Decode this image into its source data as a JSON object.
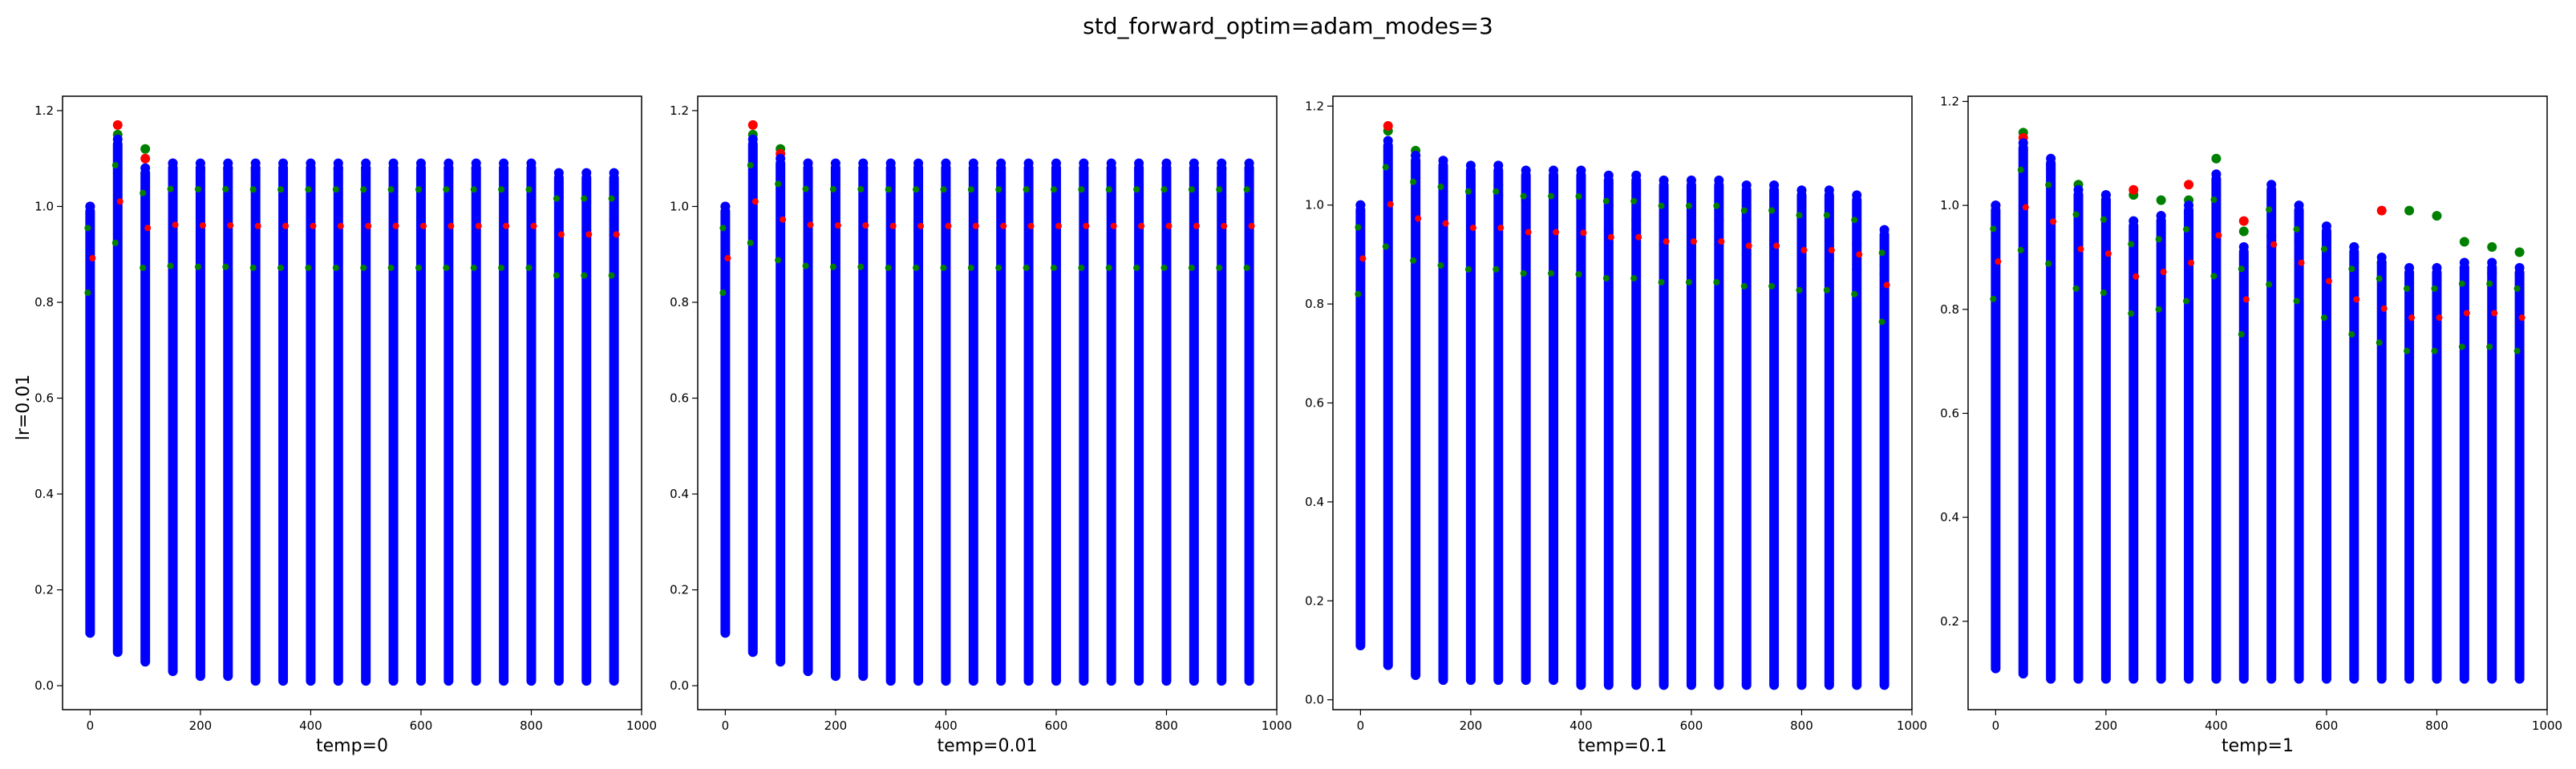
{
  "suptitle": "std_forward_optim=adam_modes=3",
  "row_label": "lr=0.01",
  "colors": {
    "red": "#ff0000",
    "green": "#008000",
    "blue": "#0000ff"
  },
  "chart_data": [
    {
      "type": "scatter",
      "xlabel": "temp=0",
      "ylabel": "lr=0.01",
      "xlim": [
        -50,
        1000
      ],
      "ylim": [
        -0.05,
        1.23
      ],
      "xticks": [
        "0",
        "200",
        "400",
        "600",
        "800",
        "1000"
      ],
      "yticks": [
        "0.0",
        "0.2",
        "0.4",
        "0.6",
        "0.8",
        "1.0",
        "1.2"
      ],
      "grid": false,
      "columns": [
        {
          "x": 0,
          "min": 0.1,
          "max": 1.0,
          "green_max": 1.0,
          "red_max": 1.0
        },
        {
          "x": 50,
          "min": 0.06,
          "max": 1.14,
          "green_max": 1.15,
          "red_max": 1.17
        },
        {
          "x": 100,
          "min": 0.04,
          "max": 1.08,
          "green_max": 1.12,
          "red_max": 1.1
        },
        {
          "x": 150,
          "min": 0.02,
          "max": 1.09,
          "green_max": 1.08,
          "red_max": 1.09
        },
        {
          "x": 200,
          "min": 0.01,
          "max": 1.09,
          "green_max": 1.08,
          "red_max": 1.08
        },
        {
          "x": 250,
          "min": 0.01,
          "max": 1.09,
          "green_max": 1.08,
          "red_max": 1.08
        },
        {
          "x": 300,
          "min": 0.0,
          "max": 1.09,
          "green_max": 1.08,
          "red_max": 1.08
        },
        {
          "x": 350,
          "min": 0.0,
          "max": 1.09,
          "green_max": 1.08,
          "red_max": 1.08
        },
        {
          "x": 400,
          "min": 0.0,
          "max": 1.09,
          "green_max": 1.08,
          "red_max": 1.08
        },
        {
          "x": 450,
          "min": 0.0,
          "max": 1.09,
          "green_max": 1.08,
          "red_max": 1.08
        },
        {
          "x": 500,
          "min": 0.0,
          "max": 1.09,
          "green_max": 1.08,
          "red_max": 1.08
        },
        {
          "x": 550,
          "min": 0.0,
          "max": 1.09,
          "green_max": 1.08,
          "red_max": 1.08
        },
        {
          "x": 600,
          "min": 0.0,
          "max": 1.09,
          "green_max": 1.08,
          "red_max": 1.08
        },
        {
          "x": 650,
          "min": 0.0,
          "max": 1.09,
          "green_max": 1.08,
          "red_max": 1.08
        },
        {
          "x": 700,
          "min": 0.0,
          "max": 1.09,
          "green_max": 1.08,
          "red_max": 1.08
        },
        {
          "x": 750,
          "min": 0.0,
          "max": 1.09,
          "green_max": 1.08,
          "red_max": 1.08
        },
        {
          "x": 800,
          "min": 0.0,
          "max": 1.09,
          "green_max": 1.08,
          "red_max": 1.0
        },
        {
          "x": 850,
          "min": 0.0,
          "max": 1.07,
          "green_max": 1.02,
          "red_max": 1.03
        },
        {
          "x": 900,
          "min": 0.0,
          "max": 1.07,
          "green_max": 0.95,
          "red_max": 1.01
        },
        {
          "x": 950,
          "min": 0.0,
          "max": 1.07,
          "green_max": 0.94,
          "red_max": 0.97
        }
      ]
    },
    {
      "type": "scatter",
      "xlabel": "temp=0.01",
      "ylabel": "",
      "xlim": [
        -50,
        1000
      ],
      "ylim": [
        -0.05,
        1.23
      ],
      "xticks": [
        "0",
        "200",
        "400",
        "600",
        "800",
        "1000"
      ],
      "yticks": [
        "0.0",
        "0.2",
        "0.4",
        "0.6",
        "0.8",
        "1.0",
        "1.2"
      ],
      "grid": false,
      "columns": [
        {
          "x": 0,
          "min": 0.1,
          "max": 1.0,
          "green_max": 1.0,
          "red_max": 1.0
        },
        {
          "x": 50,
          "min": 0.06,
          "max": 1.14,
          "green_max": 1.15,
          "red_max": 1.17
        },
        {
          "x": 100,
          "min": 0.04,
          "max": 1.1,
          "green_max": 1.12,
          "red_max": 1.11
        },
        {
          "x": 150,
          "min": 0.02,
          "max": 1.09,
          "green_max": 1.08,
          "red_max": 1.09
        },
        {
          "x": 200,
          "min": 0.01,
          "max": 1.09,
          "green_max": 1.08,
          "red_max": 1.08
        },
        {
          "x": 250,
          "min": 0.01,
          "max": 1.09,
          "green_max": 1.08,
          "red_max": 1.08
        },
        {
          "x": 300,
          "min": 0.0,
          "max": 1.09,
          "green_max": 1.08,
          "red_max": 1.08
        },
        {
          "x": 350,
          "min": 0.0,
          "max": 1.09,
          "green_max": 1.08,
          "red_max": 1.08
        },
        {
          "x": 400,
          "min": 0.0,
          "max": 1.09,
          "green_max": 1.08,
          "red_max": 1.08
        },
        {
          "x": 450,
          "min": 0.0,
          "max": 1.09,
          "green_max": 1.08,
          "red_max": 1.08
        },
        {
          "x": 500,
          "min": 0.0,
          "max": 1.09,
          "green_max": 1.08,
          "red_max": 1.08
        },
        {
          "x": 550,
          "min": 0.0,
          "max": 1.09,
          "green_max": 1.08,
          "red_max": 1.08
        },
        {
          "x": 600,
          "min": 0.0,
          "max": 1.09,
          "green_max": 1.08,
          "red_max": 1.08
        },
        {
          "x": 650,
          "min": 0.0,
          "max": 1.09,
          "green_max": 1.08,
          "red_max": 1.08
        },
        {
          "x": 700,
          "min": 0.0,
          "max": 1.09,
          "green_max": 1.08,
          "red_max": 1.08
        },
        {
          "x": 750,
          "min": 0.0,
          "max": 1.09,
          "green_max": 1.08,
          "red_max": 1.08
        },
        {
          "x": 800,
          "min": 0.0,
          "max": 1.09,
          "green_max": 1.08,
          "red_max": 1.08
        },
        {
          "x": 850,
          "min": 0.0,
          "max": 1.09,
          "green_max": 1.08,
          "red_max": 1.08
        },
        {
          "x": 900,
          "min": 0.0,
          "max": 1.09,
          "green_max": 1.08,
          "red_max": 1.08
        },
        {
          "x": 950,
          "min": 0.0,
          "max": 1.09,
          "green_max": 1.08,
          "red_max": 1.08
        }
      ]
    },
    {
      "type": "scatter",
      "xlabel": "temp=0.1",
      "ylabel": "",
      "xlim": [
        -50,
        1000
      ],
      "ylim": [
        -0.02,
        1.22
      ],
      "xticks": [
        "0",
        "200",
        "400",
        "600",
        "800",
        "1000"
      ],
      "yticks": [
        "0.0",
        "0.2",
        "0.4",
        "0.6",
        "0.8",
        "1.0",
        "1.2"
      ],
      "grid": false,
      "columns": [
        {
          "x": 0,
          "min": 0.1,
          "max": 1.0,
          "green_max": 1.0,
          "red_max": 1.0
        },
        {
          "x": 50,
          "min": 0.06,
          "max": 1.13,
          "green_max": 1.15,
          "red_max": 1.16
        },
        {
          "x": 100,
          "min": 0.04,
          "max": 1.1,
          "green_max": 1.11,
          "red_max": 1.1
        },
        {
          "x": 150,
          "min": 0.03,
          "max": 1.09,
          "green_max": 1.07,
          "red_max": 1.06
        },
        {
          "x": 200,
          "min": 0.03,
          "max": 1.08,
          "green_max": 1.05,
          "red_max": 1.04
        },
        {
          "x": 250,
          "min": 0.03,
          "max": 1.08,
          "green_max": 1.04,
          "red_max": 1.02
        },
        {
          "x": 300,
          "min": 0.03,
          "max": 1.07,
          "green_max": 1.02,
          "red_max": 1.01
        },
        {
          "x": 350,
          "min": 0.03,
          "max": 1.07,
          "green_max": 0.97,
          "red_max": 1.0
        },
        {
          "x": 400,
          "min": 0.02,
          "max": 1.07,
          "green_max": 0.93,
          "red_max": 0.98
        },
        {
          "x": 450,
          "min": 0.02,
          "max": 1.06,
          "green_max": 0.95,
          "red_max": 1.0
        },
        {
          "x": 500,
          "min": 0.02,
          "max": 1.06,
          "green_max": 0.95,
          "red_max": 0.97
        },
        {
          "x": 550,
          "min": 0.02,
          "max": 1.05,
          "green_max": 0.92,
          "red_max": 0.98
        },
        {
          "x": 600,
          "min": 0.02,
          "max": 1.05,
          "green_max": 0.9,
          "red_max": 0.98
        },
        {
          "x": 650,
          "min": 0.02,
          "max": 1.05,
          "green_max": 0.92,
          "red_max": 0.97
        },
        {
          "x": 700,
          "min": 0.02,
          "max": 1.04,
          "green_max": 0.9,
          "red_max": 0.97
        },
        {
          "x": 750,
          "min": 0.02,
          "max": 1.04,
          "green_max": 0.92,
          "red_max": 0.93
        },
        {
          "x": 800,
          "min": 0.02,
          "max": 1.03,
          "green_max": 0.88,
          "red_max": 0.92
        },
        {
          "x": 850,
          "min": 0.02,
          "max": 1.03,
          "green_max": 0.89,
          "red_max": 0.93
        },
        {
          "x": 900,
          "min": 0.02,
          "max": 1.02,
          "green_max": 0.87,
          "red_max": 0.92
        },
        {
          "x": 950,
          "min": 0.02,
          "max": 0.95,
          "green_max": 0.86,
          "red_max": 0.88
        }
      ]
    },
    {
      "type": "scatter",
      "xlabel": "temp=1",
      "ylabel": "",
      "xlim": [
        -50,
        1000
      ],
      "ylim": [
        0.03,
        1.21
      ],
      "xticks": [
        "0",
        "200",
        "400",
        "600",
        "800",
        "1000"
      ],
      "yticks": [
        "0.2",
        "0.4",
        "0.6",
        "0.8",
        "1.0",
        "1.2"
      ],
      "grid": false,
      "columns": [
        {
          "x": 0,
          "min": 0.1,
          "max": 1.0,
          "green_max": 1.0,
          "red_max": 1.0
        },
        {
          "x": 50,
          "min": 0.09,
          "max": 1.12,
          "green_max": 1.14,
          "red_max": 1.13
        },
        {
          "x": 100,
          "min": 0.08,
          "max": 1.09,
          "green_max": 1.08,
          "red_max": 1.07
        },
        {
          "x": 150,
          "min": 0.08,
          "max": 1.03,
          "green_max": 1.04,
          "red_max": 1.02
        },
        {
          "x": 200,
          "min": 0.08,
          "max": 1.02,
          "green_max": 1.02,
          "red_max": 1.01
        },
        {
          "x": 250,
          "min": 0.08,
          "max": 0.97,
          "green_max": 1.02,
          "red_max": 1.03
        },
        {
          "x": 300,
          "min": 0.08,
          "max": 0.98,
          "green_max": 1.01,
          "red_max": 0.98
        },
        {
          "x": 350,
          "min": 0.08,
          "max": 1.0,
          "green_max": 1.01,
          "red_max": 1.04
        },
        {
          "x": 400,
          "min": 0.08,
          "max": 1.06,
          "green_max": 1.09,
          "red_max": 0.93
        },
        {
          "x": 450,
          "min": 0.08,
          "max": 0.92,
          "green_max": 0.95,
          "red_max": 0.97
        },
        {
          "x": 500,
          "min": 0.08,
          "max": 1.04,
          "green_max": 0.92,
          "red_max": 0.94
        },
        {
          "x": 550,
          "min": 0.08,
          "max": 1.0,
          "green_max": 0.93,
          "red_max": 0.9
        },
        {
          "x": 600,
          "min": 0.08,
          "max": 0.96,
          "green_max": 0.89,
          "red_max": 0.9
        },
        {
          "x": 650,
          "min": 0.08,
          "max": 0.92,
          "green_max": 0.92,
          "red_max": 0.89
        },
        {
          "x": 700,
          "min": 0.08,
          "max": 0.9,
          "green_max": 0.89,
          "red_max": 0.99
        },
        {
          "x": 750,
          "min": 0.08,
          "max": 0.88,
          "green_max": 0.99,
          "red_max": 0.87
        },
        {
          "x": 800,
          "min": 0.08,
          "max": 0.88,
          "green_max": 0.98,
          "red_max": 0.87
        },
        {
          "x": 850,
          "min": 0.08,
          "max": 0.89,
          "green_max": 0.93,
          "red_max": 0.88
        },
        {
          "x": 900,
          "min": 0.08,
          "max": 0.89,
          "green_max": 0.92,
          "red_max": 0.87
        },
        {
          "x": 950,
          "min": 0.08,
          "max": 0.88,
          "green_max": 0.91,
          "red_max": 0.87
        }
      ]
    }
  ]
}
